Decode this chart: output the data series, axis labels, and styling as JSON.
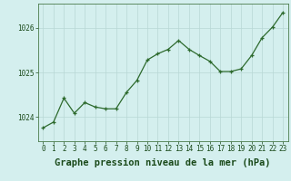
{
  "x": [
    0,
    1,
    2,
    3,
    4,
    5,
    6,
    7,
    8,
    9,
    10,
    11,
    12,
    13,
    14,
    15,
    16,
    17,
    18,
    19,
    20,
    21,
    22,
    23
  ],
  "y": [
    1023.75,
    1023.88,
    1024.42,
    1024.08,
    1024.32,
    1024.22,
    1024.18,
    1024.18,
    1024.55,
    1024.82,
    1025.28,
    1025.42,
    1025.52,
    1025.72,
    1025.52,
    1025.38,
    1025.25,
    1025.02,
    1025.02,
    1025.08,
    1025.38,
    1025.78,
    1026.02,
    1026.35
  ],
  "line_color": "#2d6a2d",
  "marker_color": "#2d6a2d",
  "bg_color": "#d4efee",
  "grid_color": "#b8d8d5",
  "border_color": "#4a7a4a",
  "xlabel": "Graphe pression niveau de la mer (hPa)",
  "xlabel_fontsize": 7.5,
  "xlabel_color": "#1a4a1a",
  "yticks": [
    1024,
    1025,
    1026
  ],
  "xtick_labels": [
    "0",
    "1",
    "2",
    "3",
    "4",
    "5",
    "6",
    "7",
    "8",
    "9",
    "10",
    "11",
    "12",
    "13",
    "14",
    "15",
    "16",
    "17",
    "18",
    "19",
    "20",
    "21",
    "22",
    "23"
  ],
  "ylim": [
    1023.45,
    1026.55
  ],
  "xlim": [
    -0.5,
    23.5
  ],
  "tick_fontsize": 5.5,
  "tick_color": "#1a4a1a",
  "linewidth": 0.9,
  "markersize": 3.5
}
